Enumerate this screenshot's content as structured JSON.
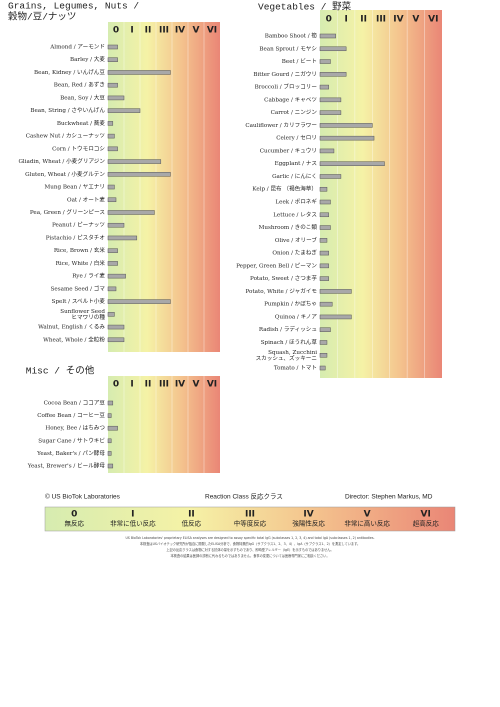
{
  "chart_data": [
    {
      "type": "bar",
      "orientation": "horizontal",
      "title": [
        "Grains, Legumes, Nuts /",
        "穀物/豆/ナッツ"
      ],
      "categories": [
        "Almond / アーモンド",
        "Barley / 大麦",
        "Bean, Kidney / いんげん豆",
        "Bean, Red / あずき",
        "Bean, Soy / 大豆",
        "Bean, String / さやいんげん",
        "Buckwheat / 蕎麦",
        "Cashew Nut / カシューナッツ",
        "Corn / トウモロコシ",
        "Gliadin, Wheat / 小麦グリアジン",
        "Gluten, Wheat / 小麦グルテン",
        "Mung Bean / ヤエナリ",
        "Oat / オート麦",
        "Pea, Green / グリーンピース",
        "Peanut / ピーナッツ",
        "Pistachio / ピスタチオ",
        "Rice, Brown / 玄米",
        "Rice, White / 白米",
        "Rye / ライ麦",
        "Sesame Seed / ゴマ",
        "Spelt / スペルト小麦",
        [
          "Sunflower Seed",
          "ヒマワリの種"
        ],
        "Walnut, English / くるみ",
        "Wheat, Whole / 全粒粉"
      ],
      "values": [
        0.6,
        0.6,
        3.9,
        0.6,
        1.0,
        2.0,
        0.3,
        0.4,
        0.6,
        3.3,
        3.9,
        0.4,
        0.5,
        2.9,
        1.0,
        1.8,
        0.6,
        0.6,
        1.1,
        0.5,
        3.9,
        0.4,
        1.0,
        1.0
      ],
      "color": "#a8a8a8",
      "xlim": [
        0,
        7
      ],
      "xticks": [
        {
          "value": 0.5,
          "label": "0"
        },
        {
          "value": 1.5,
          "label": "I"
        },
        {
          "value": 2.5,
          "label": "II"
        },
        {
          "value": 3.5,
          "label": "III"
        },
        {
          "value": 4.5,
          "label": "IV"
        },
        {
          "value": 5.5,
          "label": "V"
        },
        {
          "value": 6.5,
          "label": "VI"
        }
      ],
      "xtick_colors": [
        "#3a9a2a",
        "#c8b400",
        "#c8b400",
        "#c8b400",
        "#e07a20",
        "#e0552a",
        "#d42a2a"
      ]
    },
    {
      "type": "bar",
      "orientation": "horizontal",
      "title": [
        "Vegetables / 野菜"
      ],
      "categories": [
        "Bamboo Shoot / 筍",
        "Bean Sprout / モヤシ",
        "Beet / ビート",
        "Bitter Gourd / ニガウリ",
        "Broccoli / ブロッコリー",
        "Cabbage / キャベツ",
        "Carrot / ニンジン",
        "Cauliflower / カリフラワー",
        "Celery / セロリ",
        "Cucumber / キュウリ",
        "Eggplant / ナス",
        "Garlic / にんにく",
        "Kelp / 昆布 （褐色海草）",
        "Leek / ポロネギ",
        "Lettuce / レタス",
        "Mushroom / きのこ類",
        "Olive / オリーブ",
        "Onion / たまねぎ",
        "Pepper, Green Bell / ピーマン",
        "Potato, Sweet / さつま芋",
        "Potato, White / ジャガイモ",
        "Pumpkin / かぼちゃ",
        "Quinoa / キノア",
        "Radish / ラディッシュ",
        "Spinach / ほうれん草",
        [
          "Squash, Zucchini",
          "スカッシュ、ズッキーニ"
        ],
        "Tomato / トマト"
      ],
      "values": [
        0.9,
        1.5,
        0.6,
        1.5,
        0.5,
        1.2,
        1.2,
        3.0,
        3.1,
        0.8,
        3.7,
        1.2,
        0.4,
        0.6,
        0.5,
        0.6,
        0.4,
        0.5,
        0.5,
        0.5,
        1.8,
        0.7,
        1.8,
        0.6,
        0.4,
        0.4,
        0.3
      ],
      "color": "#a8a8a8",
      "xlim": [
        0,
        7
      ],
      "xticks": [
        {
          "value": 0.5,
          "label": "0"
        },
        {
          "value": 1.5,
          "label": "I"
        },
        {
          "value": 2.5,
          "label": "II"
        },
        {
          "value": 3.5,
          "label": "III"
        },
        {
          "value": 4.5,
          "label": "IV"
        },
        {
          "value": 5.5,
          "label": "V"
        },
        {
          "value": 6.5,
          "label": "VI"
        }
      ],
      "xtick_colors": [
        "#3a9a2a",
        "#c8b400",
        "#c8b400",
        "#c8b400",
        "#e07a20",
        "#e0552a",
        "#d42a2a"
      ]
    },
    {
      "type": "bar",
      "orientation": "horizontal",
      "title": [
        "Misc / その他"
      ],
      "categories": [
        "Cocoa Bean / ココア豆",
        "Coffee Bean / コーヒー豆",
        "Honey, Bee / はちみつ",
        "Sugar Cane / サトウキビ",
        "Yeast, Baker's / パン酵母",
        "Yeast, Brewer's / ビール酵母"
      ],
      "values": [
        0.3,
        0.2,
        0.6,
        0.2,
        0.2,
        0.3
      ],
      "color": "#a8a8a8",
      "xlim": [
        0,
        7
      ],
      "xticks": [
        {
          "value": 0.5,
          "label": "0"
        },
        {
          "value": 1.5,
          "label": "I"
        },
        {
          "value": 2.5,
          "label": "II"
        },
        {
          "value": 3.5,
          "label": "III"
        },
        {
          "value": 4.5,
          "label": "IV"
        },
        {
          "value": 5.5,
          "label": "V"
        },
        {
          "value": 6.5,
          "label": "VI"
        }
      ],
      "xtick_colors": [
        "#3a9a2a",
        "#c8b400",
        "#c8b400",
        "#c8b400",
        "#e07a20",
        "#e0552a",
        "#d42a2a"
      ]
    }
  ],
  "footer": {
    "copyright": "© US BioTok Laboratories",
    "reaction_class": "Reaction Class 反応クラス",
    "director": "Director: Stephen Markus, MD",
    "legend": [
      {
        "class": "0",
        "label": "無反応"
      },
      {
        "class": "I",
        "label": "非常に低い反応"
      },
      {
        "class": "II",
        "label": "低反応"
      },
      {
        "class": "III",
        "label": "中等度反応"
      },
      {
        "class": "IV",
        "label": "強陽性反応"
      },
      {
        "class": "V",
        "label": "非常に高い反応"
      },
      {
        "class": "VI",
        "label": "超高反応"
      }
    ],
    "fine_print": [
      "US BioTok Laboratories' proprietary ELISA analyses are designed to assay specific total IgG (subclasses 1, 2, 3, 4) and total IgA (subclasses 1, 2) antibodies.",
      "本検査はUSバイオテック研究所が独自に開発したELISA分析で、食物特異的IgG（サブクラス1、2、3、4）、IgA（サブクラス1、2）を測定しています。",
      "上記の反応クラスは食物に対する抗体の量を示すものであり、即時型アレルギー（IgE）を示すものではありません。",
      "本検査の結果は医師の診断に代わるものではありません。食事の変更については医療専門家にご相談ください。"
    ]
  }
}
